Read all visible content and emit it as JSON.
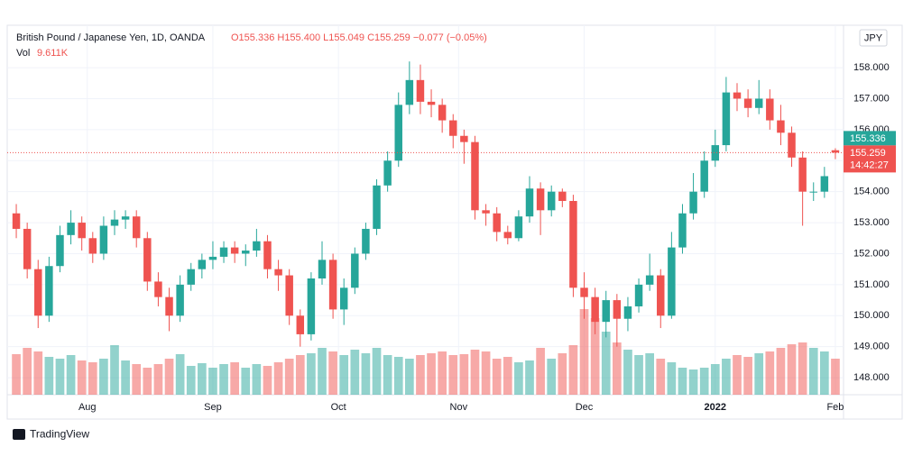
{
  "chart_data": {
    "type": "candlestick",
    "title": "British Pound / Japanese Yen, 1D, OANDA",
    "ohlc_text": "O155.336 H155.400 L155.049 C155.259 −0.077 (−0.05%)",
    "volume_label": "Vol",
    "volume_text": "9.611K",
    "currency": "JPY",
    "footer": "TradingView",
    "open_price_label": "155.336",
    "close_price_label": "155.259",
    "countdown": "14:42:27",
    "last_price": 155.259,
    "up_color": "#26a69a",
    "down_color": "#ef5350",
    "xlim": [
      -0.5,
      75.5
    ],
    "xticks": [
      {
        "value": 6.5,
        "label": "Aug"
      },
      {
        "value": 18,
        "label": "Sep"
      },
      {
        "value": 29.5,
        "label": "Oct"
      },
      {
        "value": 40.5,
        "label": "Nov"
      },
      {
        "value": 52,
        "label": "Dec"
      },
      {
        "value": 64,
        "label": "2022"
      },
      {
        "value": 75,
        "label": "Feb"
      }
    ],
    "ylim": [
      147.45,
      159.31
    ],
    "yticks": [
      {
        "value": 158,
        "label": "158.000"
      },
      {
        "value": 157,
        "label": "157.000"
      },
      {
        "value": 156,
        "label": "156.000"
      },
      {
        "value": 155,
        "label": "155.000"
      },
      {
        "value": 154,
        "label": "154.000"
      },
      {
        "value": 153,
        "label": "153.000"
      },
      {
        "value": 152,
        "label": "152.000"
      },
      {
        "value": 151,
        "label": "151.000"
      },
      {
        "value": 150,
        "label": "150.000"
      },
      {
        "value": 149,
        "label": "149.000"
      },
      {
        "value": 148,
        "label": "148.000"
      }
    ],
    "grid": true,
    "volume_lim": [
      0,
      408
    ],
    "open": [
      153.3,
      152.8,
      151.5,
      150.0,
      151.6,
      152.6,
      153.0,
      152.5,
      152.0,
      152.9,
      153.1,
      153.2,
      152.5,
      151.1,
      150.6,
      150.0,
      151.0,
      151.5,
      151.8,
      151.9,
      152.2,
      152.0,
      152.1,
      152.4,
      151.5,
      151.3,
      150.0,
      149.4,
      151.2,
      151.8,
      150.2,
      150.9,
      152.0,
      152.8,
      154.2,
      155.0,
      156.8,
      157.6,
      156.9,
      156.8,
      156.3,
      155.8,
      155.6,
      153.4,
      153.3,
      152.7,
      152.5,
      153.2,
      154.1,
      153.4,
      154.0,
      153.7,
      150.9,
      150.6,
      149.8,
      150.5,
      149.9,
      150.3,
      151.0,
      151.3,
      150.0,
      152.2,
      153.3,
      154.0,
      155.0,
      155.5,
      157.2,
      157.0,
      156.7,
      157.0,
      156.3,
      155.9,
      155.1,
      154.0,
      154.0,
      155.336
    ],
    "high": [
      153.6,
      153.0,
      151.8,
      151.9,
      152.9,
      153.4,
      153.2,
      152.7,
      153.2,
      153.4,
      153.4,
      153.4,
      152.7,
      151.4,
      150.9,
      151.3,
      151.7,
      152.0,
      152.4,
      152.4,
      152.4,
      152.3,
      152.8,
      152.6,
      151.8,
      151.5,
      150.2,
      151.4,
      152.4,
      152.0,
      151.2,
      152.2,
      153.0,
      154.4,
      155.3,
      157.2,
      158.2,
      158.1,
      157.3,
      157.0,
      156.5,
      156.0,
      155.8,
      153.6,
      153.5,
      152.9,
      153.4,
      154.5,
      154.3,
      154.2,
      154.1,
      153.9,
      151.4,
      150.9,
      150.8,
      150.7,
      150.6,
      151.2,
      152.0,
      151.5,
      152.7,
      153.6,
      154.6,
      155.3,
      156.0,
      157.7,
      157.5,
      157.3,
      157.6,
      157.3,
      156.8,
      156.1,
      155.3,
      154.3,
      154.8,
      155.4
    ],
    "low": [
      152.5,
      151.2,
      149.6,
      149.8,
      151.4,
      152.3,
      152.1,
      151.7,
      151.8,
      152.6,
      152.8,
      152.2,
      150.8,
      150.3,
      149.5,
      149.8,
      150.8,
      151.2,
      151.5,
      151.7,
      151.7,
      151.6,
      151.9,
      151.2,
      150.8,
      149.7,
      149.0,
      149.2,
      151.0,
      149.9,
      149.7,
      150.7,
      151.8,
      152.6,
      154.0,
      154.8,
      156.5,
      156.5,
      156.4,
      155.9,
      155.4,
      154.9,
      153.1,
      152.9,
      152.4,
      152.3,
      152.4,
      153.0,
      152.6,
      153.2,
      153.5,
      150.6,
      149.9,
      149.4,
      149.3,
      149.0,
      149.5,
      150.1,
      150.8,
      149.6,
      149.9,
      152.0,
      153.1,
      153.8,
      154.8,
      155.3,
      156.6,
      156.4,
      156.5,
      156.0,
      155.5,
      154.8,
      152.9,
      153.7,
      153.8,
      155.049
    ],
    "close": [
      152.8,
      151.5,
      150.0,
      151.6,
      152.6,
      153.0,
      152.5,
      152.0,
      152.9,
      153.1,
      153.2,
      152.5,
      151.1,
      150.6,
      150.0,
      151.0,
      151.5,
      151.8,
      151.9,
      152.2,
      152.0,
      152.1,
      152.4,
      151.5,
      151.3,
      150.0,
      149.4,
      151.2,
      151.8,
      150.2,
      150.9,
      152.0,
      152.8,
      154.2,
      155.0,
      156.8,
      157.6,
      156.9,
      156.8,
      156.3,
      155.8,
      155.6,
      153.4,
      153.3,
      152.7,
      152.5,
      153.2,
      154.1,
      153.4,
      154.0,
      153.7,
      150.9,
      150.6,
      149.8,
      150.5,
      149.9,
      150.3,
      151.0,
      151.3,
      150.0,
      152.2,
      153.3,
      154.0,
      155.0,
      155.5,
      157.2,
      157.0,
      156.7,
      157.0,
      156.3,
      155.9,
      155.1,
      154.0,
      154.0,
      154.5,
      155.259
    ],
    "volume": [
      45,
      52,
      48,
      42,
      40,
      44,
      38,
      36,
      40,
      55,
      38,
      34,
      30,
      34,
      40,
      45,
      32,
      35,
      30,
      34,
      36,
      30,
      34,
      32,
      36,
      40,
      44,
      46,
      52,
      48,
      44,
      50,
      46,
      52,
      44,
      42,
      40,
      44,
      46,
      48,
      44,
      45,
      50,
      48,
      40,
      42,
      36,
      38,
      52,
      40,
      46,
      55,
      95,
      85,
      70,
      58,
      50,
      44,
      46,
      40,
      36,
      30,
      28,
      30,
      34,
      40,
      44,
      42,
      46,
      48,
      52,
      56,
      58,
      52,
      48,
      40
    ]
  }
}
